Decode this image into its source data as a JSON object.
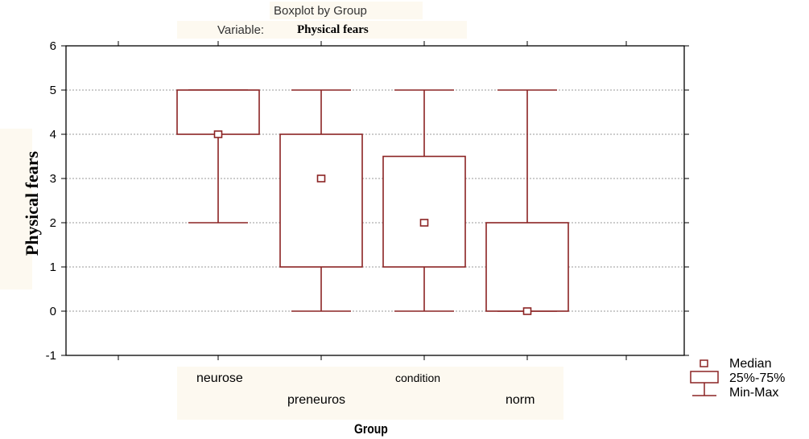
{
  "chart_data": {
    "type": "boxplot",
    "title": "Boxplot by Group",
    "variable_prefix": "Variable:",
    "variable_name": "Physical fears",
    "xlabel": "Group",
    "ylabel": "Physical fears",
    "ylim": [
      -1,
      6
    ],
    "yticks": [
      -1,
      0,
      1,
      2,
      3,
      4,
      5,
      6
    ],
    "grid": true,
    "legend_position": "bottom-right",
    "color": "#8b2323",
    "categories": [
      "neurose",
      "preneuros",
      "condition",
      "norm"
    ],
    "boxes": [
      {
        "category": "neurose",
        "min": 2,
        "q1": 4,
        "median": 4,
        "q3": 5,
        "max": 5
      },
      {
        "category": "preneuros",
        "min": 0,
        "q1": 1,
        "median": 3,
        "q3": 4,
        "max": 5
      },
      {
        "category": "condition",
        "min": 0,
        "q1": 1,
        "median": 2,
        "q3": 3.5,
        "max": 5
      },
      {
        "category": "norm",
        "min": 0,
        "q1": 0,
        "median": 0,
        "q3": 2,
        "max": 5
      }
    ],
    "legend": [
      {
        "label": "Median",
        "icon": "median-square-icon"
      },
      {
        "label": "25%-75%",
        "icon": "box-icon"
      },
      {
        "label": "Min-Max",
        "icon": "whisker-icon"
      }
    ]
  }
}
